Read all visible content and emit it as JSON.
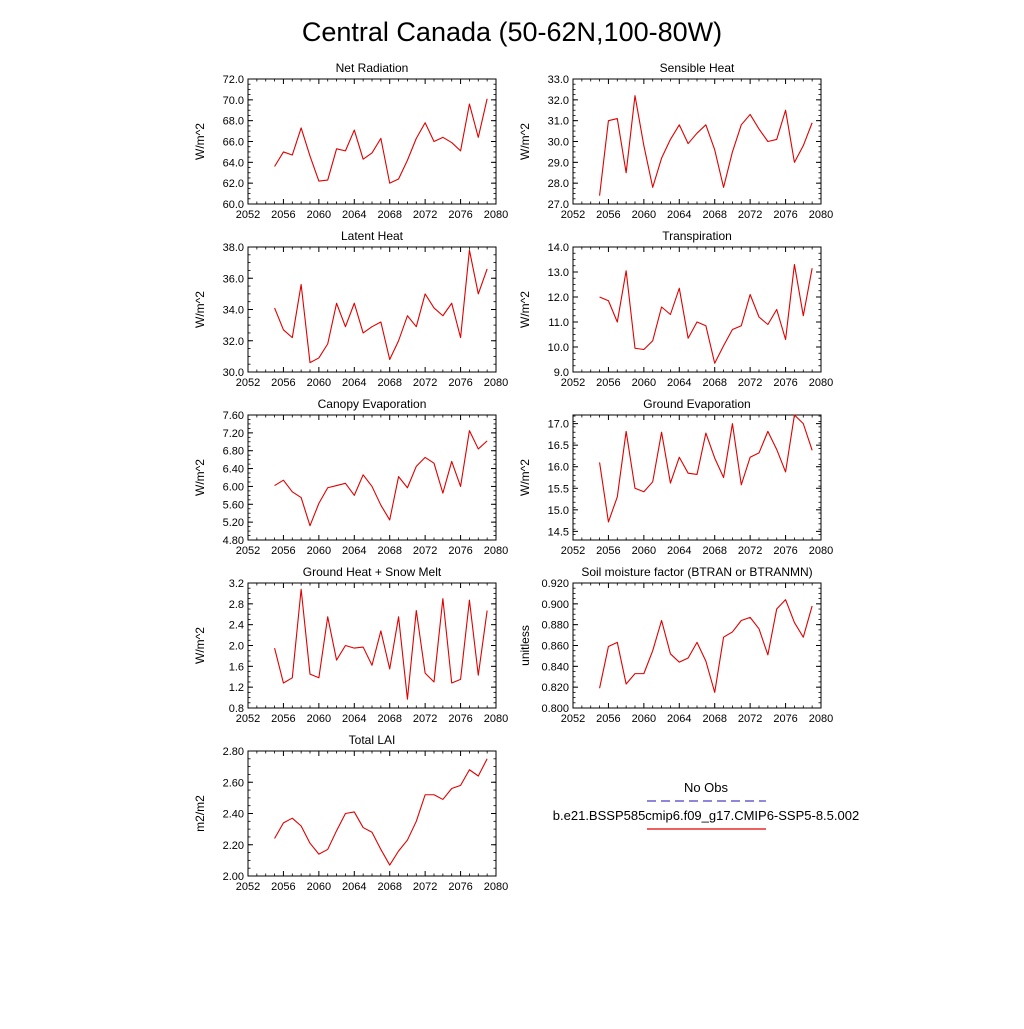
{
  "page_title": "Central Canada (50-62N,100-80W)",
  "legend": {
    "obs_label": "No Obs",
    "obs_color": "#4b3fc4",
    "model_label": "b.e21.BSSP585cmip6.f09_g17.CMIP6-SSP5-8.5.002",
    "model_color": "#e00000"
  },
  "chart_data": [
    {
      "type": "line",
      "title": "Net Radiation",
      "ylabel": "W/m^2",
      "xlim": [
        2052,
        2080
      ],
      "ylim": [
        60,
        72
      ],
      "x_ticks": [
        "2052",
        "2056",
        "2060",
        "2064",
        "2068",
        "2072",
        "2076",
        "2080"
      ],
      "y_ticks": [
        "60.0",
        "62.0",
        "64.0",
        "66.0",
        "68.0",
        "70.0",
        "72.0"
      ],
      "series": [
        {
          "x": [
            2055,
            2056,
            2057,
            2058,
            2059,
            2060,
            2061,
            2062,
            2063,
            2064,
            2065,
            2066,
            2067,
            2068,
            2069,
            2070,
            2071,
            2072,
            2073,
            2074,
            2075,
            2076,
            2077,
            2078,
            2079
          ],
          "values": [
            63.6,
            65.0,
            64.7,
            67.3,
            64.6,
            62.2,
            62.3,
            65.3,
            65.1,
            67.1,
            64.3,
            64.9,
            66.3,
            62.0,
            62.4,
            64.2,
            66.3,
            67.8,
            66.0,
            66.4,
            65.9,
            65.1,
            69.6,
            66.4,
            70.1
          ]
        }
      ]
    },
    {
      "type": "line",
      "title": "Sensible Heat",
      "ylabel": "W/m^2",
      "xlim": [
        2052,
        2080
      ],
      "ylim": [
        27,
        33
      ],
      "x_ticks": [
        "2052",
        "2056",
        "2060",
        "2064",
        "2068",
        "2072",
        "2076",
        "2080"
      ],
      "y_ticks": [
        "27.0",
        "28.0",
        "29.0",
        "30.0",
        "31.0",
        "32.0",
        "33.0"
      ],
      "series": [
        {
          "x": [
            2055,
            2056,
            2057,
            2058,
            2059,
            2060,
            2061,
            2062,
            2063,
            2064,
            2065,
            2066,
            2067,
            2068,
            2069,
            2070,
            2071,
            2072,
            2073,
            2074,
            2075,
            2076,
            2077,
            2078,
            2079
          ],
          "values": [
            27.4,
            31.0,
            31.1,
            28.5,
            32.2,
            29.8,
            27.8,
            29.2,
            30.1,
            30.8,
            29.9,
            30.4,
            30.8,
            29.6,
            27.8,
            29.5,
            30.8,
            31.3,
            30.6,
            30.0,
            30.1,
            31.5,
            29.0,
            29.8,
            30.9
          ]
        }
      ]
    },
    {
      "type": "line",
      "title": "Latent Heat",
      "ylabel": "W/m^2",
      "xlim": [
        2052,
        2080
      ],
      "ylim": [
        30,
        38
      ],
      "x_ticks": [
        "2052",
        "2056",
        "2060",
        "2064",
        "2068",
        "2072",
        "2076",
        "2080"
      ],
      "y_ticks": [
        "30.0",
        "32.0",
        "34.0",
        "36.0",
        "38.0"
      ],
      "series": [
        {
          "x": [
            2055,
            2056,
            2057,
            2058,
            2059,
            2060,
            2061,
            2062,
            2063,
            2064,
            2065,
            2066,
            2067,
            2068,
            2069,
            2070,
            2071,
            2072,
            2073,
            2074,
            2075,
            2076,
            2077,
            2078,
            2079
          ],
          "values": [
            34.1,
            32.7,
            32.2,
            35.6,
            30.6,
            30.9,
            31.8,
            34.4,
            32.9,
            34.4,
            32.5,
            32.9,
            33.2,
            30.8,
            32.0,
            33.6,
            32.9,
            35.0,
            34.1,
            33.6,
            34.4,
            32.2,
            37.8,
            35.0,
            36.6
          ]
        }
      ]
    },
    {
      "type": "line",
      "title": "Transpiration",
      "ylabel": "W/m^2",
      "xlim": [
        2052,
        2080
      ],
      "ylim": [
        9,
        14
      ],
      "x_ticks": [
        "2052",
        "2056",
        "2060",
        "2064",
        "2068",
        "2072",
        "2076",
        "2080"
      ],
      "y_ticks": [
        "9.0",
        "10.0",
        "11.0",
        "12.0",
        "13.0",
        "14.0"
      ],
      "series": [
        {
          "x": [
            2055,
            2056,
            2057,
            2058,
            2059,
            2060,
            2061,
            2062,
            2063,
            2064,
            2065,
            2066,
            2067,
            2068,
            2069,
            2070,
            2071,
            2072,
            2073,
            2074,
            2075,
            2076,
            2077,
            2078,
            2079
          ],
          "values": [
            12.0,
            11.85,
            11.0,
            13.05,
            9.95,
            9.9,
            10.25,
            11.6,
            11.3,
            12.35,
            10.35,
            11.0,
            10.85,
            9.35,
            10.05,
            10.7,
            10.85,
            12.1,
            11.2,
            10.9,
            11.5,
            10.3,
            13.3,
            11.25,
            13.15
          ]
        }
      ]
    },
    {
      "type": "line",
      "title": "Canopy Evaporation",
      "ylabel": "W/m^2",
      "xlim": [
        2052,
        2080
      ],
      "ylim": [
        4.8,
        7.6
      ],
      "x_ticks": [
        "2052",
        "2056",
        "2060",
        "2064",
        "2068",
        "2072",
        "2076",
        "2080"
      ],
      "y_ticks": [
        "4.80",
        "5.20",
        "5.60",
        "6.00",
        "6.40",
        "6.80",
        "7.20",
        "7.60"
      ],
      "series": [
        {
          "x": [
            2055,
            2056,
            2057,
            2058,
            2059,
            2060,
            2061,
            2062,
            2063,
            2064,
            2065,
            2066,
            2067,
            2068,
            2069,
            2070,
            2071,
            2072,
            2073,
            2074,
            2075,
            2076,
            2077,
            2078,
            2079
          ],
          "values": [
            6.02,
            6.14,
            5.88,
            5.75,
            5.12,
            5.62,
            5.97,
            6.02,
            6.07,
            5.8,
            6.26,
            6.0,
            5.58,
            5.25,
            6.22,
            5.97,
            6.45,
            6.65,
            6.52,
            5.85,
            6.56,
            6.0,
            7.25,
            6.84,
            7.02
          ]
        }
      ]
    },
    {
      "type": "line",
      "title": "Ground Evaporation",
      "ylabel": "W/m^2",
      "xlim": [
        2052,
        2080
      ],
      "ylim": [
        14.3,
        17.2
      ],
      "x_ticks": [
        "2052",
        "2056",
        "2060",
        "2064",
        "2068",
        "2072",
        "2076",
        "2080"
      ],
      "y_ticks": [
        "14.5",
        "15.0",
        "15.5",
        "16.0",
        "16.5",
        "17.0"
      ],
      "series": [
        {
          "x": [
            2055,
            2056,
            2057,
            2058,
            2059,
            2060,
            2061,
            2062,
            2063,
            2064,
            2065,
            2066,
            2067,
            2068,
            2069,
            2070,
            2071,
            2072,
            2073,
            2074,
            2075,
            2076,
            2077,
            2078,
            2079
          ],
          "values": [
            16.1,
            14.72,
            15.3,
            16.82,
            15.5,
            15.42,
            15.65,
            16.8,
            15.62,
            16.22,
            15.85,
            15.82,
            16.78,
            16.2,
            15.75,
            17.0,
            15.58,
            16.22,
            16.32,
            16.82,
            16.4,
            15.88,
            17.2,
            17.0,
            16.38
          ]
        }
      ]
    },
    {
      "type": "line",
      "title": "Ground Heat + Snow Melt",
      "ylabel": "W/m^2",
      "xlim": [
        2052,
        2080
      ],
      "ylim": [
        0.8,
        3.2
      ],
      "x_ticks": [
        "2052",
        "2056",
        "2060",
        "2064",
        "2068",
        "2072",
        "2076",
        "2080"
      ],
      "y_ticks": [
        "0.8",
        "1.2",
        "1.6",
        "2.0",
        "2.4",
        "2.8",
        "3.2"
      ],
      "series": [
        {
          "x": [
            2055,
            2056,
            2057,
            2058,
            2059,
            2060,
            2061,
            2062,
            2063,
            2064,
            2065,
            2066,
            2067,
            2068,
            2069,
            2070,
            2071,
            2072,
            2073,
            2074,
            2075,
            2076,
            2077,
            2078,
            2079
          ],
          "values": [
            1.95,
            1.28,
            1.38,
            3.08,
            1.45,
            1.38,
            2.55,
            1.72,
            2.0,
            1.95,
            1.97,
            1.62,
            2.28,
            1.55,
            2.55,
            0.97,
            2.67,
            1.47,
            1.3,
            2.9,
            1.28,
            1.35,
            2.87,
            1.43,
            2.67
          ]
        }
      ]
    },
    {
      "type": "line",
      "title": "Soil moisture factor (BTRAN or BTRANMN)",
      "ylabel": "unitless",
      "xlim": [
        2052,
        2080
      ],
      "ylim": [
        0.8,
        0.92
      ],
      "x_ticks": [
        "2052",
        "2056",
        "2060",
        "2064",
        "2068",
        "2072",
        "2076",
        "2080"
      ],
      "y_ticks": [
        "0.800",
        "0.820",
        "0.840",
        "0.860",
        "0.880",
        "0.900",
        "0.920"
      ],
      "series": [
        {
          "x": [
            2055,
            2056,
            2057,
            2058,
            2059,
            2060,
            2061,
            2062,
            2063,
            2064,
            2065,
            2066,
            2067,
            2068,
            2069,
            2070,
            2071,
            2072,
            2073,
            2074,
            2075,
            2076,
            2077,
            2078,
            2079
          ],
          "values": [
            0.819,
            0.859,
            0.863,
            0.823,
            0.833,
            0.833,
            0.855,
            0.884,
            0.852,
            0.844,
            0.848,
            0.863,
            0.845,
            0.815,
            0.868,
            0.873,
            0.884,
            0.887,
            0.876,
            0.851,
            0.895,
            0.904,
            0.882,
            0.868,
            0.898
          ]
        }
      ]
    },
    {
      "type": "line",
      "title": "Total LAI",
      "ylabel": "m2/m2",
      "xlim": [
        2052,
        2080
      ],
      "ylim": [
        2.0,
        2.8
      ],
      "x_ticks": [
        "2052",
        "2056",
        "2060",
        "2064",
        "2068",
        "2072",
        "2076",
        "2080"
      ],
      "y_ticks": [
        "2.00",
        "2.20",
        "2.40",
        "2.60",
        "2.80"
      ],
      "series": [
        {
          "x": [
            2055,
            2056,
            2057,
            2058,
            2059,
            2060,
            2061,
            2062,
            2063,
            2064,
            2065,
            2066,
            2067,
            2068,
            2069,
            2070,
            2071,
            2072,
            2073,
            2074,
            2075,
            2076,
            2077,
            2078,
            2079
          ],
          "values": [
            2.24,
            2.34,
            2.37,
            2.32,
            2.21,
            2.14,
            2.17,
            2.29,
            2.4,
            2.41,
            2.31,
            2.28,
            2.17,
            2.07,
            2.16,
            2.23,
            2.35,
            2.52,
            2.52,
            2.49,
            2.56,
            2.58,
            2.68,
            2.64,
            2.75
          ]
        }
      ]
    }
  ]
}
